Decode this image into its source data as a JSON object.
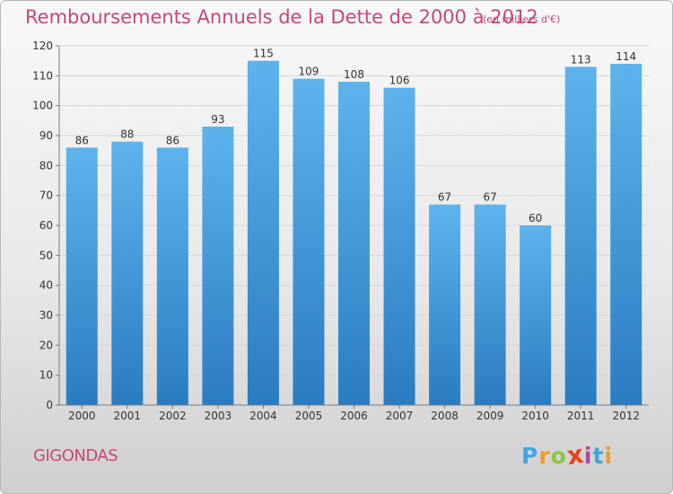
{
  "header": {
    "title": "Remboursements Annuels de la Dette de 2000 à 2012",
    "subtitle": "(en milliers d'€)"
  },
  "footer": {
    "commune": "GIGONDAS",
    "logo_letters": [
      "P",
      "r",
      "o",
      "x",
      "i",
      "t",
      "i"
    ],
    "logo_colors": [
      "#3fa7e0",
      "#f39c1f",
      "#8cc63f",
      "#e8411e",
      "#a84b9c",
      "#3fa7e0",
      "#f39c1f"
    ]
  },
  "colors": {
    "bar_top": "#5eb3ed",
    "bar_bottom": "#2a7cc0",
    "grid": "#d7d7d7",
    "axis": "#7a7a7a",
    "text": "#333333",
    "accent": "#c8477a"
  },
  "chart_data": {
    "type": "bar",
    "title": "Remboursements Annuels de la Dette de 2000 à 2012",
    "subtitle": "(en milliers d'€)",
    "categories": [
      "2000",
      "2001",
      "2002",
      "2003",
      "2004",
      "2005",
      "2006",
      "2007",
      "2008",
      "2009",
      "2010",
      "2011",
      "2012"
    ],
    "values": [
      86,
      88,
      86,
      93,
      115,
      109,
      108,
      106,
      67,
      67,
      60,
      113,
      114
    ],
    "ylim": [
      0,
      120
    ],
    "yticks": [
      0,
      10,
      20,
      30,
      40,
      50,
      60,
      70,
      80,
      90,
      100,
      110,
      120
    ],
    "grid": true
  }
}
